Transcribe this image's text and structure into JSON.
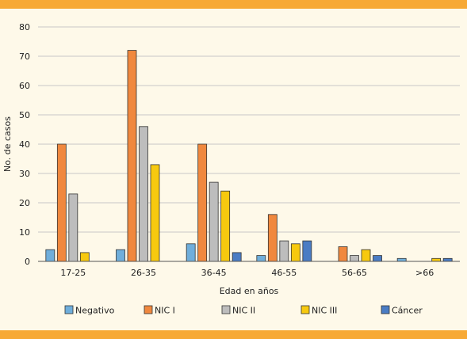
{
  "chart_data": {
    "type": "bar",
    "title": "",
    "xlabel": "Edad en años",
    "ylabel": "No. de casos",
    "ylim": [
      0,
      80
    ],
    "yticks": [
      0,
      10,
      20,
      30,
      40,
      50,
      60,
      70,
      80
    ],
    "grid": true,
    "legend_position": "bottom",
    "categories": [
      "17-25",
      "26-35",
      "36-45",
      "46-55",
      "56-65",
      ">66"
    ],
    "series": [
      {
        "name": "Negativo",
        "color": "#6FAEDB",
        "values": [
          4,
          4,
          6,
          2,
          0,
          1
        ]
      },
      {
        "name": "NIC I",
        "color": "#F0883E",
        "values": [
          40,
          72,
          40,
          16,
          5,
          0
        ]
      },
      {
        "name": "NIC II",
        "color": "#BDBDBD",
        "values": [
          23,
          46,
          27,
          7,
          2,
          0
        ]
      },
      {
        "name": "NIC III",
        "color": "#F7C90F",
        "values": [
          3,
          33,
          24,
          6,
          4,
          1
        ]
      },
      {
        "name": "Cáncer",
        "color": "#4A7CC4",
        "values": [
          0,
          0,
          3,
          7,
          2,
          1
        ]
      }
    ]
  }
}
